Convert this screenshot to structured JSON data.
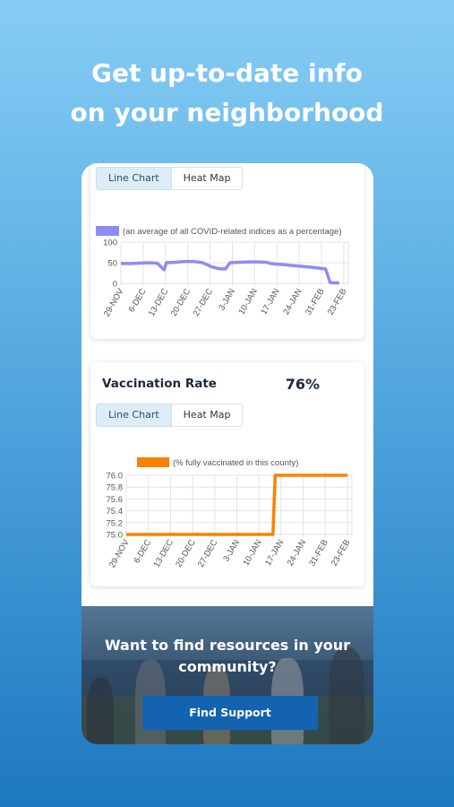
{
  "headline": {
    "line1": "Get up-to-date info",
    "line2": "on your neighborhood"
  },
  "index_card": {
    "tabs": [
      {
        "label": "Line Chart",
        "active": true
      },
      {
        "label": "Heat Map",
        "active": false
      }
    ]
  },
  "vaccination_card": {
    "title": "Vaccination Rate",
    "value": "76%",
    "tabs": [
      {
        "label": "Line Chart",
        "active": true
      },
      {
        "label": "Heat Map",
        "active": false
      }
    ]
  },
  "banner": {
    "line1": "Want to find resources in your",
    "line2": "community?",
    "button_label": "Find Support"
  },
  "colors": {
    "index_series": "#8e8cf2",
    "vaccination_series": "#ff8000",
    "button": "#1463b0"
  },
  "chart_data": [
    {
      "type": "line",
      "title": "",
      "xlabel": "",
      "ylabel": "",
      "ylim": [
        0,
        100
      ],
      "yticks": [
        "100",
        "50",
        "0"
      ],
      "x_tick_labels": [
        "29-NOV",
        "6-DEC",
        "13-DEC",
        "20-DEC",
        "27-DEC",
        "3-JAN",
        "10-JAN",
        "17-JAN",
        "24-JAN",
        "31-FEB",
        "23-FEB"
      ],
      "grid": true,
      "series": [
        {
          "name": "(an average of all COVID-related indices as a percentage)",
          "color": "#8e8cf2",
          "x": [
            0,
            4,
            8,
            12,
            16,
            18,
            19,
            20,
            24,
            28,
            32,
            36,
            38,
            40,
            42,
            44,
            46,
            48,
            52,
            56,
            60,
            64,
            66,
            68,
            72,
            76,
            80,
            84,
            88,
            90,
            92,
            94,
            96
          ],
          "values": [
            48,
            48,
            49,
            50,
            49,
            38,
            33,
            50,
            51,
            53,
            53,
            50,
            45,
            40,
            37,
            35,
            35,
            50,
            51,
            52,
            52,
            51,
            48,
            47,
            45,
            43,
            41,
            39,
            36,
            35,
            2,
            1,
            1
          ]
        }
      ]
    },
    {
      "type": "line",
      "title": "",
      "xlabel": "",
      "ylabel": "",
      "ylim": [
        75.0,
        76.0
      ],
      "yticks": [
        "76.0",
        "75.8",
        "75.6",
        "75.4",
        "75.2",
        "75.0"
      ],
      "x_tick_labels": [
        "29-NOV",
        "6-DEC",
        "13-DEC",
        "20-DEC",
        "27-DEC",
        "3-JAN",
        "10-JAN",
        "17-JAN",
        "24-JAN",
        "31-FEB",
        "23-FEB"
      ],
      "grid": true,
      "series": [
        {
          "name": "(% fully vaccinated in this county)",
          "color": "#ff8000",
          "x": [
            0,
            10,
            20,
            30,
            40,
            50,
            60,
            65,
            66,
            70,
            80,
            90,
            98
          ],
          "values": [
            75.0,
            75.0,
            75.0,
            75.0,
            75.0,
            75.0,
            75.0,
            75.0,
            76.0,
            76.0,
            76.0,
            76.0,
            76.0
          ]
        }
      ]
    }
  ]
}
